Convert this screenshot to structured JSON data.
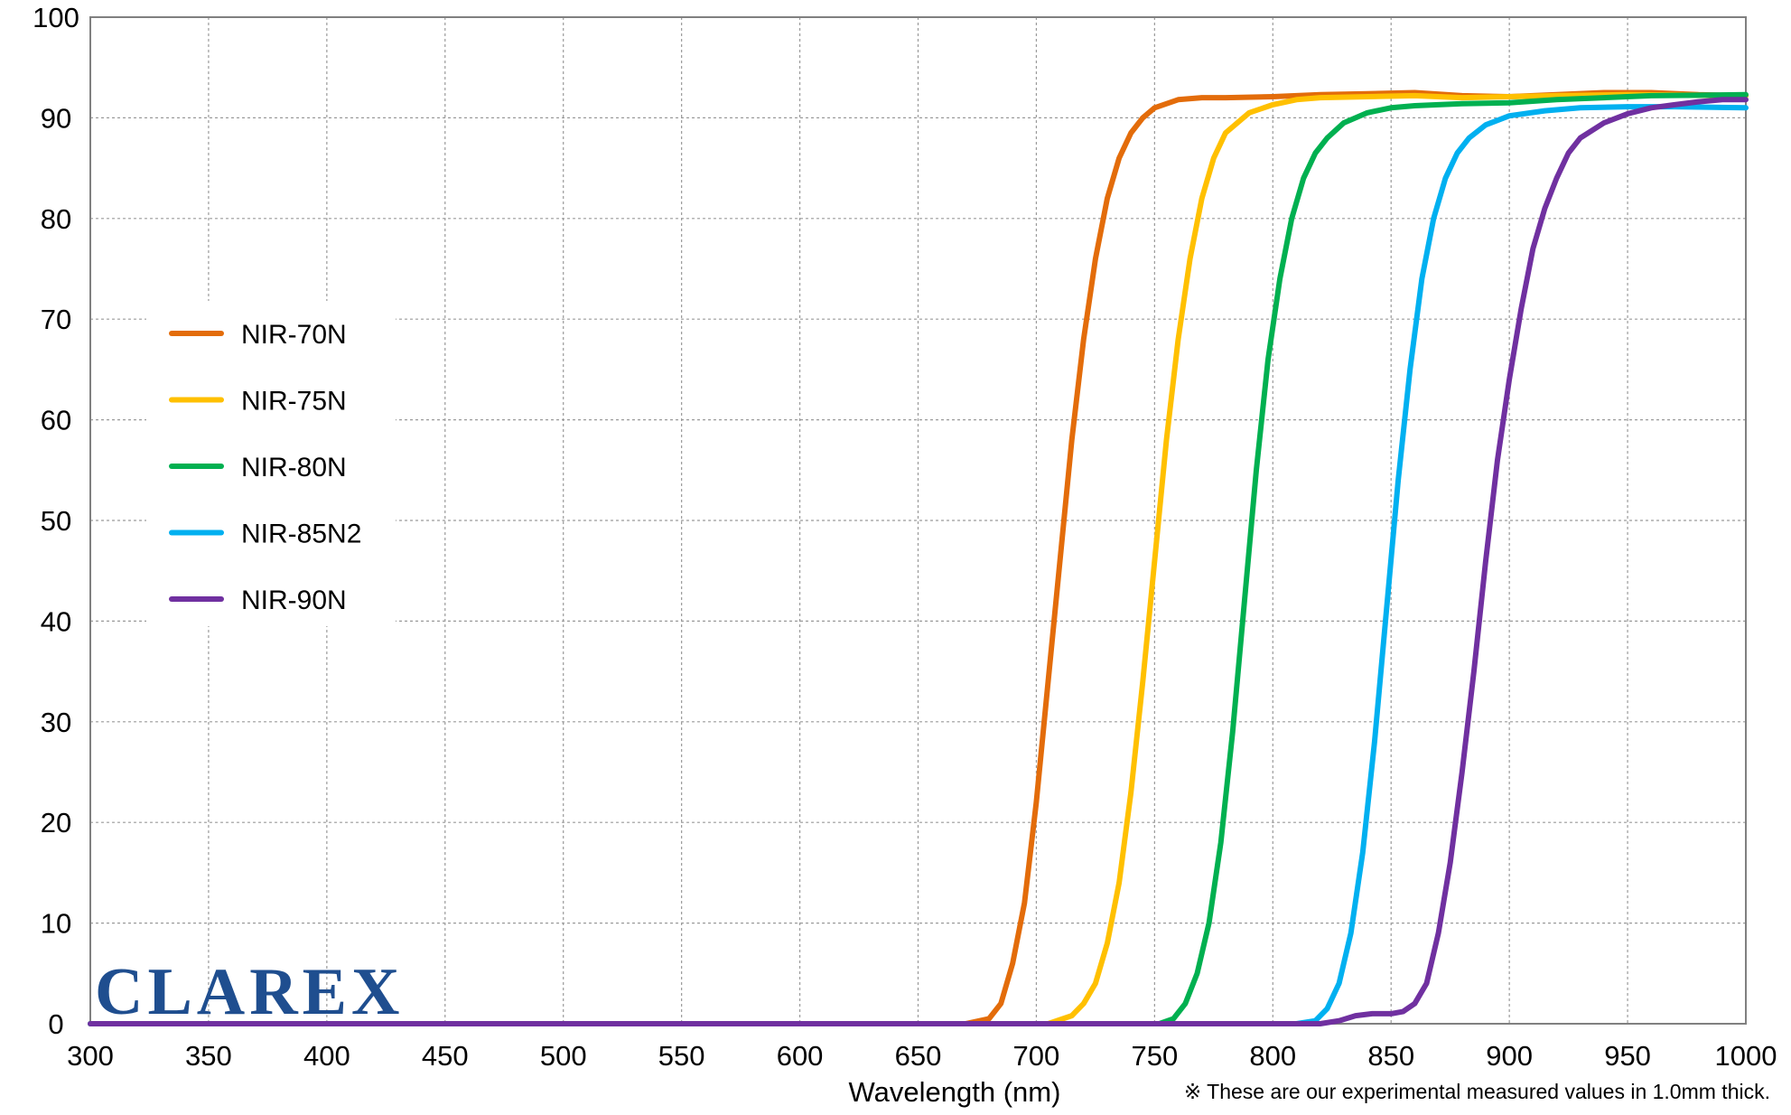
{
  "colors": {
    "NIR-70N": "#E36C0A",
    "NIR-75N": "#FFC000",
    "NIR-80N": "#00B050",
    "NIR-85N2": "#00B0F0",
    "NIR-90N": "#7030A0",
    "grid": "#9a9a9a",
    "axis": "#808080",
    "logo": "#1f4e8f"
  },
  "logo": {
    "text": "CLAREX"
  },
  "footnote": "※ These are our experimental measured values in 1.0mm thick.",
  "chart_data": {
    "type": "line",
    "title": "",
    "xlabel": "Wavelength (nm)",
    "ylabel": "",
    "xlim": [
      300,
      1000
    ],
    "ylim": [
      0,
      100
    ],
    "xticks": [
      300,
      350,
      400,
      450,
      500,
      550,
      600,
      650,
      700,
      750,
      800,
      850,
      900,
      950,
      1000
    ],
    "yticks": [
      0,
      10,
      20,
      30,
      40,
      50,
      60,
      70,
      80,
      90,
      100
    ],
    "grid": true,
    "legend_position": "left",
    "series": [
      {
        "name": "NIR-70N",
        "color": "#E36C0A",
        "points": [
          [
            300,
            0
          ],
          [
            670,
            0
          ],
          [
            680,
            0.5
          ],
          [
            685,
            2
          ],
          [
            690,
            6
          ],
          [
            695,
            12
          ],
          [
            700,
            22
          ],
          [
            705,
            34
          ],
          [
            710,
            46
          ],
          [
            715,
            58
          ],
          [
            720,
            68
          ],
          [
            725,
            76
          ],
          [
            730,
            82
          ],
          [
            735,
            86
          ],
          [
            740,
            88.5
          ],
          [
            745,
            90
          ],
          [
            750,
            91
          ],
          [
            760,
            91.8
          ],
          [
            770,
            92
          ],
          [
            780,
            92
          ],
          [
            800,
            92.1
          ],
          [
            820,
            92.3
          ],
          [
            840,
            92.4
          ],
          [
            860,
            92.5
          ],
          [
            880,
            92.2
          ],
          [
            900,
            92.1
          ],
          [
            920,
            92.3
          ],
          [
            940,
            92.5
          ],
          [
            960,
            92.5
          ],
          [
            980,
            92.3
          ],
          [
            1000,
            92.2
          ]
        ]
      },
      {
        "name": "NIR-75N",
        "color": "#FFC000",
        "points": [
          [
            300,
            0
          ],
          [
            705,
            0
          ],
          [
            715,
            0.8
          ],
          [
            720,
            2
          ],
          [
            725,
            4
          ],
          [
            730,
            8
          ],
          [
            735,
            14
          ],
          [
            740,
            23
          ],
          [
            745,
            34
          ],
          [
            750,
            46
          ],
          [
            755,
            58
          ],
          [
            760,
            68
          ],
          [
            765,
            76
          ],
          [
            770,
            82
          ],
          [
            775,
            86
          ],
          [
            780,
            88.5
          ],
          [
            790,
            90.5
          ],
          [
            800,
            91.3
          ],
          [
            810,
            91.8
          ],
          [
            820,
            92
          ],
          [
            840,
            92.1
          ],
          [
            860,
            92.2
          ],
          [
            880,
            92
          ],
          [
            900,
            92.1
          ],
          [
            920,
            92.2
          ],
          [
            950,
            92.3
          ],
          [
            1000,
            92.2
          ]
        ]
      },
      {
        "name": "NIR-80N",
        "color": "#00B050",
        "points": [
          [
            300,
            0
          ],
          [
            752,
            0
          ],
          [
            758,
            0.5
          ],
          [
            763,
            2
          ],
          [
            768,
            5
          ],
          [
            773,
            10
          ],
          [
            778,
            18
          ],
          [
            783,
            29
          ],
          [
            788,
            42
          ],
          [
            793,
            55
          ],
          [
            798,
            66
          ],
          [
            803,
            74
          ],
          [
            808,
            80
          ],
          [
            813,
            84
          ],
          [
            818,
            86.5
          ],
          [
            823,
            88
          ],
          [
            830,
            89.5
          ],
          [
            840,
            90.5
          ],
          [
            850,
            91
          ],
          [
            860,
            91.2
          ],
          [
            880,
            91.4
          ],
          [
            900,
            91.5
          ],
          [
            920,
            91.8
          ],
          [
            940,
            92
          ],
          [
            960,
            92.2
          ],
          [
            1000,
            92.3
          ]
        ]
      },
      {
        "name": "NIR-85N2",
        "color": "#00B0F0",
        "points": [
          [
            300,
            0
          ],
          [
            810,
            0
          ],
          [
            818,
            0.3
          ],
          [
            823,
            1.5
          ],
          [
            828,
            4
          ],
          [
            833,
            9
          ],
          [
            838,
            17
          ],
          [
            843,
            28
          ],
          [
            848,
            41
          ],
          [
            853,
            54
          ],
          [
            858,
            65
          ],
          [
            863,
            74
          ],
          [
            868,
            80
          ],
          [
            873,
            84
          ],
          [
            878,
            86.5
          ],
          [
            883,
            88
          ],
          [
            890,
            89.3
          ],
          [
            900,
            90.2
          ],
          [
            915,
            90.7
          ],
          [
            930,
            91
          ],
          [
            950,
            91.1
          ],
          [
            970,
            91.1
          ],
          [
            1000,
            91
          ]
        ]
      },
      {
        "name": "NIR-90N",
        "color": "#7030A0",
        "points": [
          [
            300,
            0
          ],
          [
            820,
            0
          ],
          [
            828,
            0.3
          ],
          [
            835,
            0.8
          ],
          [
            842,
            1
          ],
          [
            850,
            1
          ],
          [
            855,
            1.2
          ],
          [
            860,
            2
          ],
          [
            865,
            4
          ],
          [
            870,
            9
          ],
          [
            875,
            16
          ],
          [
            880,
            25
          ],
          [
            885,
            35
          ],
          [
            890,
            46
          ],
          [
            895,
            56
          ],
          [
            900,
            64
          ],
          [
            905,
            71
          ],
          [
            910,
            77
          ],
          [
            915,
            81
          ],
          [
            920,
            84
          ],
          [
            925,
            86.5
          ],
          [
            930,
            88
          ],
          [
            940,
            89.5
          ],
          [
            950,
            90.4
          ],
          [
            960,
            91
          ],
          [
            970,
            91.3
          ],
          [
            980,
            91.6
          ],
          [
            990,
            91.8
          ],
          [
            1000,
            91.8
          ]
        ]
      }
    ]
  }
}
